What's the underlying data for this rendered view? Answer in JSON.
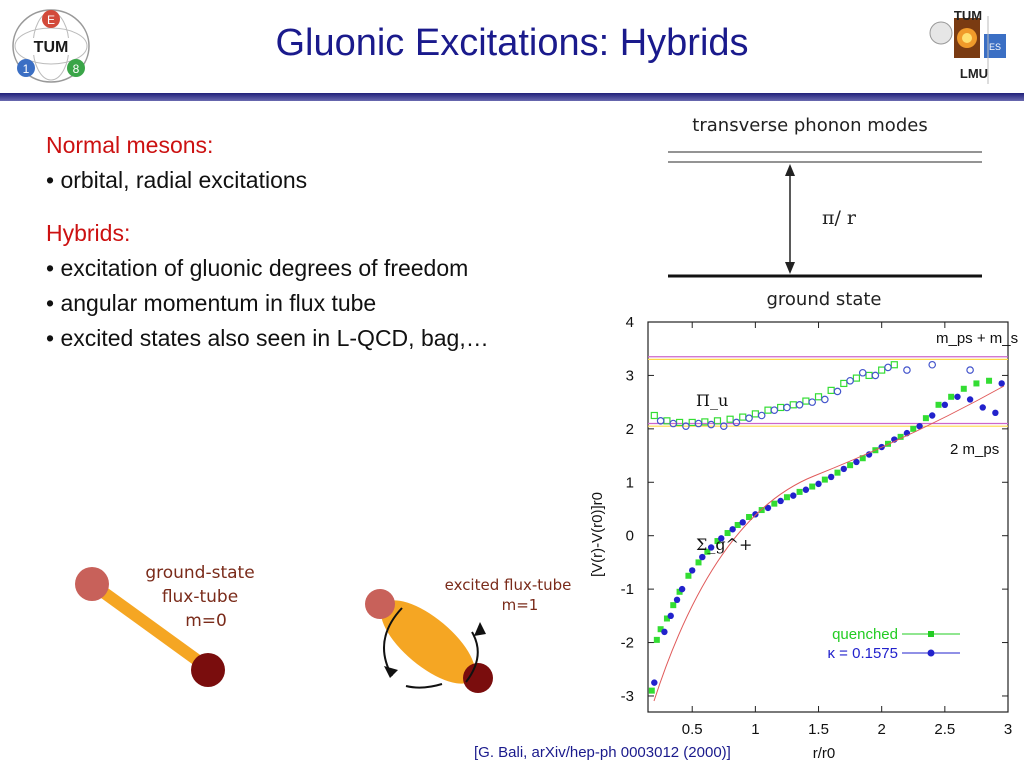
{
  "slide": {
    "title": "Gluonic Excitations: Hybrids",
    "citation": "[G. Bali, arXiv/hep-ph 0003012 (2000)]"
  },
  "left_logo": {
    "letters": [
      "E",
      "TUM",
      "1",
      "8"
    ]
  },
  "right_logo": {
    "letters": [
      "TUM",
      "LMU",
      "ES"
    ]
  },
  "bullets": [
    {
      "kind": "head",
      "text": "Normal mesons:"
    },
    {
      "kind": "item",
      "text": "• orbital, radial excitations"
    },
    {
      "kind": "gap",
      "text": ""
    },
    {
      "kind": "head",
      "text": "Hybrids:"
    },
    {
      "kind": "item",
      "text": "• excitation of gluonic degrees of freedom"
    },
    {
      "kind": "item",
      "text": "• angular momentum in flux tube"
    },
    {
      "kind": "item",
      "text": "• excited states also seen in L-QCD, bag,…"
    }
  ],
  "phonon_diagram": {
    "top_label": "transverse phonon modes",
    "gap_label": "π/ r",
    "bottom_label": "ground state"
  },
  "flux_tubes": {
    "ground": {
      "line1": "ground-state",
      "line2": "flux-tube",
      "line3": "m=0"
    },
    "excited": {
      "line1": "excited flux-tube",
      "line2": "m=1"
    }
  },
  "chart_data": {
    "type": "scatter",
    "xlabel": "r/r0",
    "ylabel": "[V(r)-V(r0)]r0",
    "xlim": [
      0.15,
      3.0
    ],
    "ylim": [
      -3.3,
      4.0
    ],
    "xticks": [
      "0.5",
      "1",
      "1.5",
      "2",
      "2.5",
      "3"
    ],
    "yticks": [
      "-3",
      "-2",
      "-1",
      "0",
      "1",
      "2",
      "3",
      "4"
    ],
    "legend": {
      "placement": "bottom-right",
      "entries": [
        "quenched",
        "κ = 0.1575"
      ]
    },
    "annotations": {
      "threshold_upper": "m_ps + m_s",
      "threshold_lower": "2 m_ps",
      "pi_u": "Π_u",
      "sigma_g": "Σ_g^+"
    },
    "threshold_lines": [
      {
        "y": 3.3,
        "color": "#ffd84a"
      },
      {
        "y": 3.35,
        "color": "#cc66cc"
      },
      {
        "y": 2.05,
        "color": "#ffd84a"
      },
      {
        "y": 2.1,
        "color": "#cc66cc"
      }
    ],
    "series": [
      {
        "name": "quenched",
        "color": "#33dd33",
        "marker": "square",
        "x": [
          0.18,
          0.22,
          0.25,
          0.3,
          0.35,
          0.4,
          0.47,
          0.55,
          0.62,
          0.7,
          0.78,
          0.86,
          0.95,
          1.05,
          1.15,
          1.25,
          1.35,
          1.45,
          1.55,
          1.65,
          1.75,
          1.85,
          1.95,
          2.05,
          2.15,
          2.25,
          2.35,
          2.45,
          2.55,
          2.65,
          2.75,
          2.85
        ],
        "y": [
          -2.9,
          -1.95,
          -1.75,
          -1.55,
          -1.3,
          -1.05,
          -0.75,
          -0.5,
          -0.3,
          -0.1,
          0.05,
          0.2,
          0.35,
          0.48,
          0.6,
          0.72,
          0.82,
          0.92,
          1.05,
          1.18,
          1.32,
          1.45,
          1.6,
          1.72,
          1.85,
          2.0,
          2.2,
          2.45,
          2.6,
          2.75,
          2.85,
          2.9
        ]
      },
      {
        "name": "κ = 0.1575",
        "color": "#2222cc",
        "marker": "circle",
        "x": [
          0.2,
          0.28,
          0.33,
          0.38,
          0.42,
          0.5,
          0.58,
          0.65,
          0.73,
          0.82,
          0.9,
          1.0,
          1.1,
          1.2,
          1.3,
          1.4,
          1.5,
          1.6,
          1.7,
          1.8,
          1.9,
          2.0,
          2.1,
          2.2,
          2.3,
          2.4,
          2.5,
          2.6,
          2.7,
          2.8,
          2.9,
          2.95
        ],
        "y": [
          -2.75,
          -1.8,
          -1.5,
          -1.2,
          -1.0,
          -0.65,
          -0.4,
          -0.22,
          -0.05,
          0.12,
          0.25,
          0.4,
          0.52,
          0.65,
          0.75,
          0.86,
          0.97,
          1.1,
          1.25,
          1.38,
          1.52,
          1.66,
          1.8,
          1.92,
          2.05,
          2.25,
          2.45,
          2.6,
          2.55,
          2.4,
          2.3,
          2.85
        ]
      },
      {
        "name": "Π_u quenched",
        "color": "#33dd33",
        "marker": "square-open",
        "x": [
          0.2,
          0.3,
          0.4,
          0.5,
          0.6,
          0.7,
          0.8,
          0.9,
          1.0,
          1.1,
          1.2,
          1.3,
          1.4,
          1.5,
          1.6,
          1.7,
          1.8,
          1.9,
          2.0,
          2.1
        ],
        "y": [
          2.25,
          2.15,
          2.12,
          2.12,
          2.13,
          2.15,
          2.18,
          2.22,
          2.28,
          2.35,
          2.4,
          2.45,
          2.52,
          2.6,
          2.72,
          2.85,
          2.95,
          3.0,
          3.1,
          3.2
        ]
      },
      {
        "name": "Π_u κ",
        "color": "#4455cc",
        "marker": "circle-open",
        "x": [
          0.25,
          0.35,
          0.45,
          0.55,
          0.65,
          0.75,
          0.85,
          0.95,
          1.05,
          1.15,
          1.25,
          1.35,
          1.45,
          1.55,
          1.65,
          1.75,
          1.85,
          1.95,
          2.05,
          2.2,
          2.4,
          2.7
        ],
        "y": [
          2.15,
          2.1,
          2.05,
          2.1,
          2.08,
          2.05,
          2.12,
          2.2,
          2.25,
          2.35,
          2.4,
          2.45,
          2.5,
          2.55,
          2.7,
          2.9,
          3.05,
          3.0,
          3.15,
          3.1,
          3.2,
          3.1
        ]
      }
    ]
  }
}
